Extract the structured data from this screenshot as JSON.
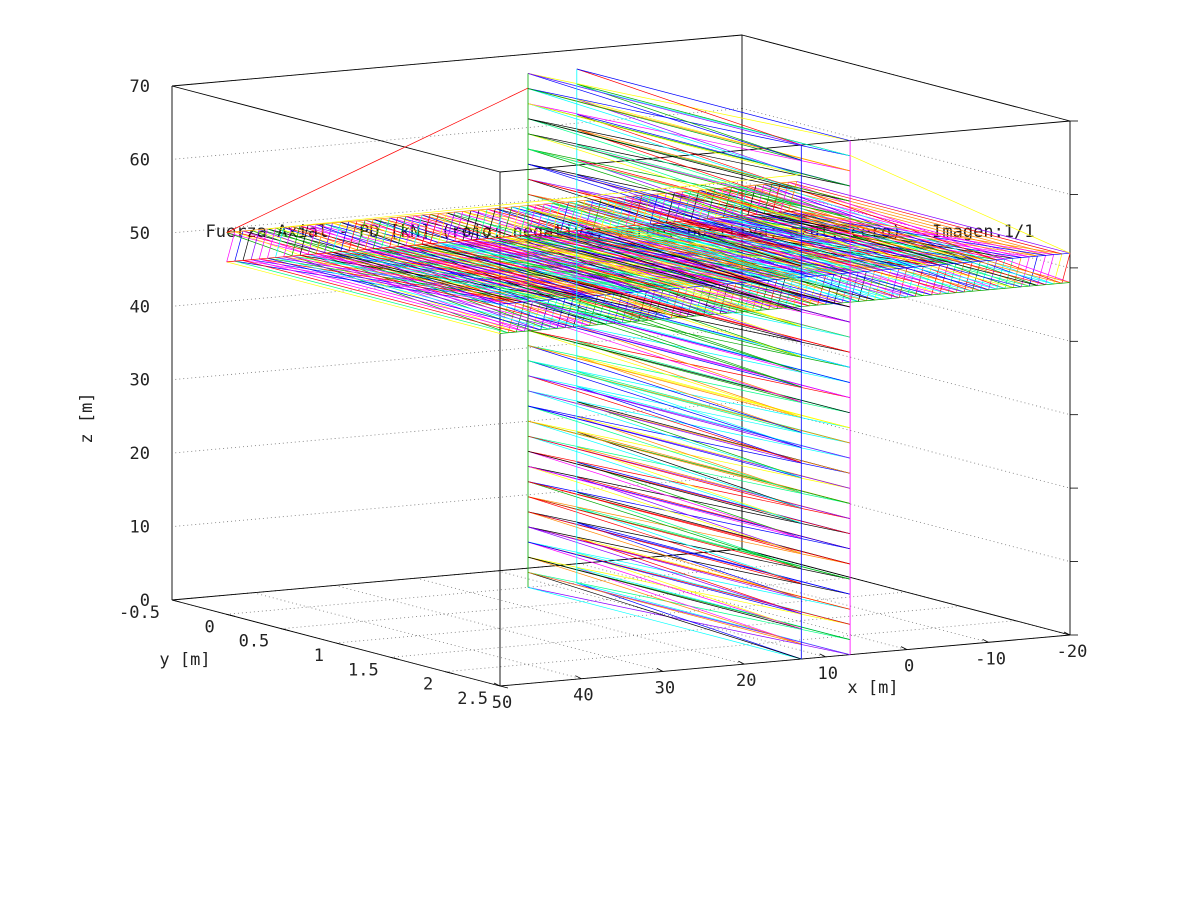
{
  "chart_data": {
    "type": "3d-line-wireframe",
    "title": "Fuerza Axial - PD [kN] (rojo: negativa; verde: positiva; azul: cero) - Imagen:1/1",
    "xlabel": "x [m]",
    "ylabel": "y [m]",
    "zlabel": "z [m]",
    "xlim": [
      -20,
      50
    ],
    "ylim": [
      -0.5,
      2.5
    ],
    "zlim": [
      0,
      70
    ],
    "x_ticks": [
      "50",
      "40",
      "30",
      "20",
      "10",
      "0",
      "-10",
      "-20"
    ],
    "y_ticks": [
      "-0.5",
      "0",
      "0.5",
      "1",
      "1.5",
      "2",
      "2.5"
    ],
    "z_ticks": [
      "0",
      "10",
      "20",
      "30",
      "40",
      "50",
      "60",
      "70"
    ],
    "grid": true,
    "box": true,
    "legend": "none",
    "line_colors": [
      "#ff0000",
      "#00aa00",
      "#0000ff",
      "#00ffff",
      "#ff00ff",
      "#ffff00",
      "#000000",
      "#ff8800",
      "#00ff88",
      "#8800ff"
    ],
    "structure": {
      "deck": {
        "x_range": [
          -20,
          50
        ],
        "y_range": [
          0,
          2.5
        ],
        "z_range": [
          48,
          52
        ]
      },
      "pier": {
        "x_range": [
          7,
          13
        ],
        "y_range": [
          0,
          2.5
        ],
        "z_range": [
          0,
          70
        ]
      }
    }
  }
}
